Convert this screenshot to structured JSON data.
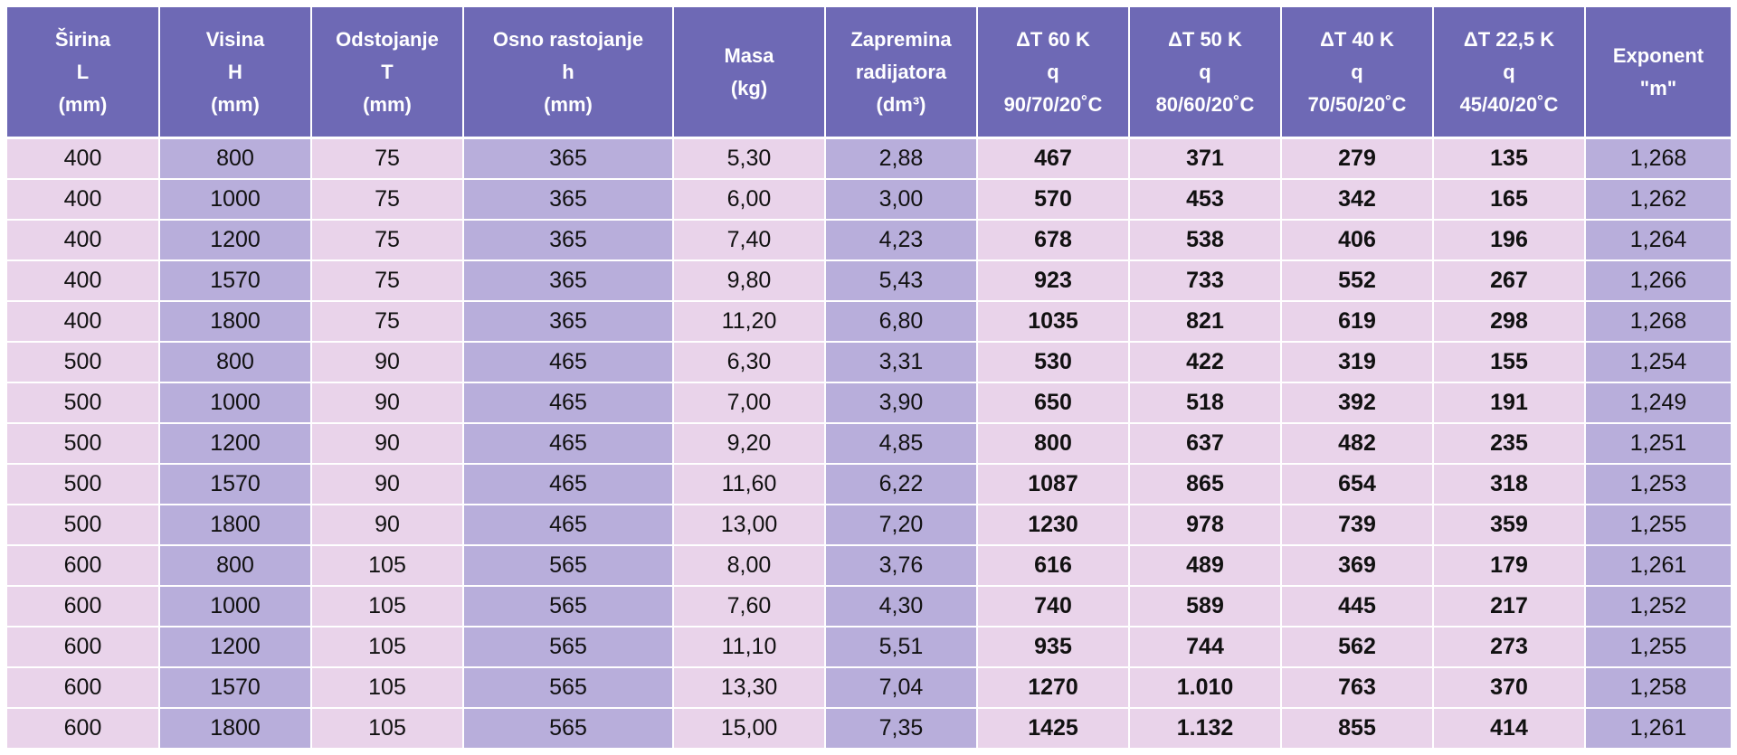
{
  "table": {
    "headers": [
      [
        "Širina",
        "L",
        "(mm)"
      ],
      [
        "Visina",
        "H",
        "(mm)"
      ],
      [
        "Odstojanje",
        "T",
        "(mm)"
      ],
      [
        "Osno rastojanje",
        "h",
        "(mm)"
      ],
      [
        "Masa",
        "(kg)"
      ],
      [
        "Zapremina",
        "radijatora",
        "(dm³)"
      ],
      [
        "ΔT 60 K",
        "q",
        "90/70/20˚C"
      ],
      [
        "ΔT 50 K",
        "q",
        "80/60/20˚C"
      ],
      [
        "ΔT 40 K",
        "q",
        "70/50/20˚C"
      ],
      [
        "ΔT 22,5 K",
        "q",
        "45/40/20˚C"
      ],
      [
        "Exponent",
        "\"m\""
      ]
    ],
    "rows": [
      [
        "400",
        "800",
        "75",
        "365",
        "5,30",
        "2,88",
        "467",
        "371",
        "279",
        "135",
        "1,268"
      ],
      [
        "400",
        "1000",
        "75",
        "365",
        "6,00",
        "3,00",
        "570",
        "453",
        "342",
        "165",
        "1,262"
      ],
      [
        "400",
        "1200",
        "75",
        "365",
        "7,40",
        "4,23",
        "678",
        "538",
        "406",
        "196",
        "1,264"
      ],
      [
        "400",
        "1570",
        "75",
        "365",
        "9,80",
        "5,43",
        "923",
        "733",
        "552",
        "267",
        "1,266"
      ],
      [
        "400",
        "1800",
        "75",
        "365",
        "11,20",
        "6,80",
        "1035",
        "821",
        "619",
        "298",
        "1,268"
      ],
      [
        "500",
        "800",
        "90",
        "465",
        "6,30",
        "3,31",
        "530",
        "422",
        "319",
        "155",
        "1,254"
      ],
      [
        "500",
        "1000",
        "90",
        "465",
        "7,00",
        "3,90",
        "650",
        "518",
        "392",
        "191",
        "1,249"
      ],
      [
        "500",
        "1200",
        "90",
        "465",
        "9,20",
        "4,85",
        "800",
        "637",
        "482",
        "235",
        "1,251"
      ],
      [
        "500",
        "1570",
        "90",
        "465",
        "11,60",
        "6,22",
        "1087",
        "865",
        "654",
        "318",
        "1,253"
      ],
      [
        "500",
        "1800",
        "90",
        "465",
        "13,00",
        "7,20",
        "1230",
        "978",
        "739",
        "359",
        "1,255"
      ],
      [
        "600",
        "800",
        "105",
        "565",
        "8,00",
        "3,76",
        "616",
        "489",
        "369",
        "179",
        "1,261"
      ],
      [
        "600",
        "1000",
        "105",
        "565",
        "7,60",
        "4,30",
        "740",
        "589",
        "445",
        "217",
        "1,252"
      ],
      [
        "600",
        "1200",
        "105",
        "565",
        "11,10",
        "5,51",
        "935",
        "744",
        "562",
        "273",
        "1,255"
      ],
      [
        "600",
        "1570",
        "105",
        "565",
        "13,30",
        "7,04",
        "1270",
        "1.010",
        "763",
        "370",
        "1,258"
      ],
      [
        "600",
        "1800",
        "105",
        "565",
        "15,00",
        "7,35",
        "1425",
        "1.132",
        "855",
        "414",
        "1,261"
      ]
    ],
    "colors": {
      "header": "#6e69b5",
      "light_cell": "#e9d3ea",
      "dark_cell": "#b8aedb"
    }
  }
}
